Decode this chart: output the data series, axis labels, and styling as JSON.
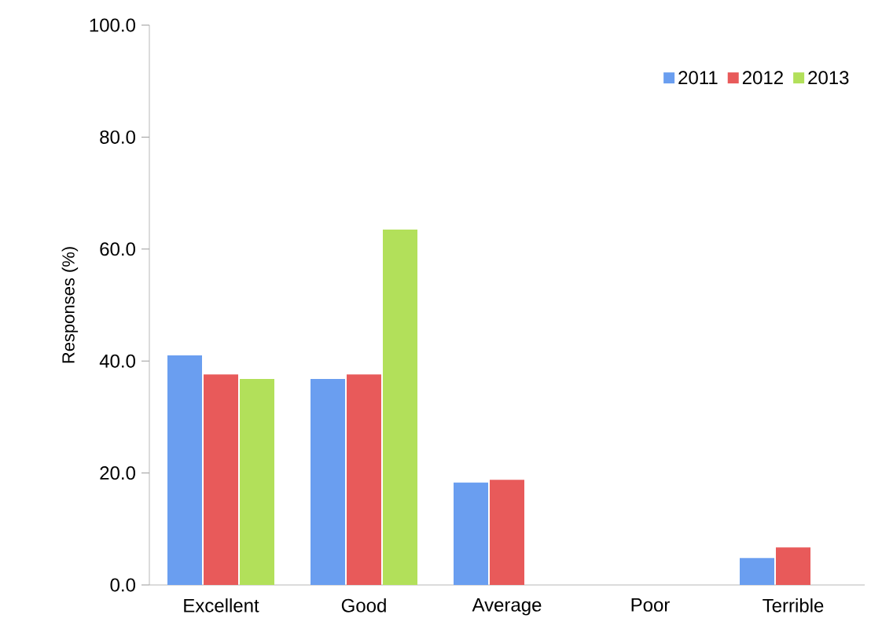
{
  "chart_data": {
    "type": "bar",
    "ylabel": "Responses (%)",
    "categories": [
      "Excellent",
      "Good",
      "Average",
      "Poor",
      "Terrible"
    ],
    "series": [
      {
        "name": "2011",
        "color": "#6a9ef0",
        "values": [
          41.0,
          36.8,
          18.3,
          0,
          4.8
        ]
      },
      {
        "name": "2012",
        "color": "#e85a5a",
        "values": [
          37.6,
          37.6,
          18.8,
          0,
          6.7
        ]
      },
      {
        "name": "2013",
        "color": "#b2e05a",
        "values": [
          36.8,
          63.5,
          0,
          0,
          0
        ]
      }
    ],
    "ylim": [
      0,
      100
    ],
    "yticks": [
      {
        "value": 0,
        "label": "0.0"
      },
      {
        "value": 20,
        "label": "20.0"
      },
      {
        "value": 40,
        "label": "40.0"
      },
      {
        "value": 60,
        "label": "60.0"
      },
      {
        "value": 80,
        "label": "80.0"
      },
      {
        "value": 100,
        "label": "100.0"
      }
    ],
    "grid": false,
    "legend": "top right"
  }
}
